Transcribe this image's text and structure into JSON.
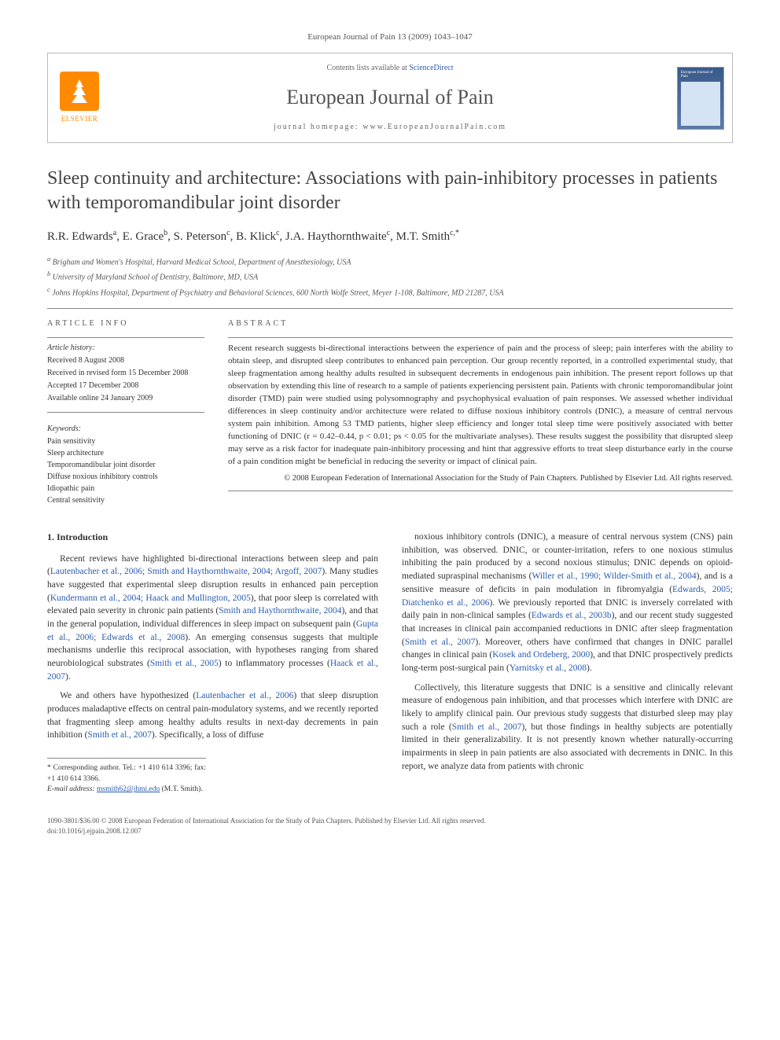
{
  "journal_header": "European Journal of Pain 13 (2009) 1043–1047",
  "header": {
    "contents_prefix": "Contents lists available at ",
    "contents_link": "ScienceDirect",
    "journal_name": "European Journal of Pain",
    "homepage_prefix": "journal homepage: ",
    "homepage": "www.EuropeanJournalPain.com",
    "publisher": "ELSEVIER"
  },
  "title": "Sleep continuity and architecture: Associations with pain-inhibitory processes in patients with temporomandibular joint disorder",
  "authors_html": "R.R. Edwards<sup>a</sup>, E. Grace<sup>b</sup>, S. Peterson<sup>c</sup>, B. Klick<sup>c</sup>, J.A. Haythornthwaite<sup>c</sup>, M.T. Smith<sup>c,*</sup>",
  "affiliations": [
    "a Brigham and Women's Hospital, Harvard Medical School, Department of Anesthesiology, USA",
    "b University of Maryland School of Dentistry, Baltimore, MD, USA",
    "c Johns Hopkins Hospital, Department of Psychiatry and Behavioral Sciences, 600 North Wolfe Street, Meyer 1-108, Baltimore, MD 21287, USA"
  ],
  "info": {
    "heading": "ARTICLE INFO",
    "history_label": "Article history:",
    "history": [
      "Received 8 August 2008",
      "Received in revised form 15 December 2008",
      "Accepted 17 December 2008",
      "Available online 24 January 2009"
    ],
    "keywords_label": "Keywords:",
    "keywords": [
      "Pain sensitivity",
      "Sleep architecture",
      "Temporomandibular joint disorder",
      "Diffuse noxious inhibitory controls",
      "Idiopathic pain",
      "Central sensitivity"
    ]
  },
  "abstract": {
    "heading": "ABSTRACT",
    "text": "Recent research suggests bi-directional interactions between the experience of pain and the process of sleep; pain interferes with the ability to obtain sleep, and disrupted sleep contributes to enhanced pain perception. Our group recently reported, in a controlled experimental study, that sleep fragmentation among healthy adults resulted in subsequent decrements in endogenous pain inhibition. The present report follows up that observation by extending this line of research to a sample of patients experiencing persistent pain. Patients with chronic temporomandibular joint disorder (TMD) pain were studied using polysomnography and psychophysical evaluation of pain responses. We assessed whether individual differences in sleep continuity and/or architecture were related to diffuse noxious inhibitory controls (DNIC), a measure of central nervous system pain inhibition. Among 53 TMD patients, higher sleep efficiency and longer total sleep time were positively associated with better functioning of DNIC (r = 0.42–0.44, p < 0.01; ps < 0.05 for the multivariate analyses). These results suggest the possibility that disrupted sleep may serve as a risk factor for inadequate pain-inhibitory processing and hint that aggressive efforts to treat sleep disturbance early in the course of a pain condition might be beneficial in reducing the severity or impact of clinical pain.",
    "copyright": "© 2008 European Federation of International Association for the Study of Pain Chapters. Published by Elsevier Ltd. All rights reserved."
  },
  "body": {
    "section_heading": "1. Introduction",
    "col1_p1": "Recent reviews have highlighted bi-directional interactions between sleep and pain (Lautenbacher et al., 2006; Smith and Haythornthwaite, 2004; Argoff, 2007). Many studies have suggested that experimental sleep disruption results in enhanced pain perception (Kundermann et al., 2004; Haack and Mullington, 2005), that poor sleep is correlated with elevated pain severity in chronic pain patients (Smith and Haythornthwaite, 2004), and that in the general population, individual differences in sleep impact on subsequent pain (Gupta et al., 2006; Edwards et al., 2008). An emerging consensus suggests that multiple mechanisms underlie this reciprocal association, with hypotheses ranging from shared neurobiological substrates (Smith et al., 2005) to inflammatory processes (Haack et al., 2007).",
    "col1_p2": "We and others have hypothesized (Lautenbacher et al., 2006) that sleep disruption produces maladaptive effects on central pain-modulatory systems, and we recently reported that fragmenting sleep among healthy adults results in next-day decrements in pain inhibition (Smith et al., 2007). Specifically, a loss of diffuse",
    "col2_p1": "noxious inhibitory controls (DNIC), a measure of central nervous system (CNS) pain inhibition, was observed. DNIC, or counter-irritation, refers to one noxious stimulus inhibiting the pain produced by a second noxious stimulus; DNIC depends on opioid-mediated supraspinal mechanisms (Willer et al., 1990; Wilder-Smith et al., 2004), and is a sensitive measure of deficits in pain modulation in fibromyalgia (Edwards, 2005; Diatchenko et al., 2006). We previously reported that DNIC is inversely correlated with daily pain in non-clinical samples (Edwards et al., 2003b), and our recent study suggested that increases in clinical pain accompanied reductions in DNIC after sleep fragmentation (Smith et al., 2007). Moreover, others have confirmed that changes in DNIC parallel changes in clinical pain (Kosek and Ordeberg, 2000), and that DNIC prospectively predicts long-term post-surgical pain (Yarnitsky et al., 2008).",
    "col2_p2": "Collectively, this literature suggests that DNIC is a sensitive and clinically relevant measure of endogenous pain inhibition, and that processes which interfere with DNIC are likely to amplify clinical pain. Our previous study suggests that disturbed sleep may play such a role (Smith et al., 2007), but those findings in healthy subjects are potentially limited in their generalizability. It is not presently known whether naturally-occurring impairments in sleep in pain patients are also associated with decrements in DNIC. In this report, we analyze data from patients with chronic"
  },
  "corresponding": {
    "line1": "* Corresponding author. Tel.: +1 410 614 3396; fax: +1 410 614 3366.",
    "email_label": "E-mail address: ",
    "email": "msmith62@jhmi.edu",
    "email_suffix": " (M.T. Smith)."
  },
  "footer": {
    "issn": "1090-3801/$36.00 © 2008 European Federation of International Association for the Study of Pain Chapters. Published by Elsevier Ltd. All rights reserved.",
    "doi": "doi:10.1016/j.ejpain.2008.12.007"
  }
}
